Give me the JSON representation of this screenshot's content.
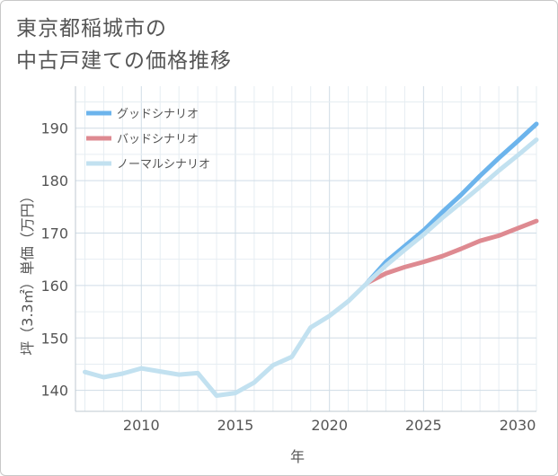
{
  "chart": {
    "title_line1": "東京都稲城市の",
    "title_line2": "中古戸建ての価格推移"
  },
  "chart_data": {
    "type": "line",
    "title": "東京都稲城市の中古戸建ての価格推移",
    "xlabel": "年",
    "ylabel": "坪（3.3㎡）単価（万円）",
    "xlim": [
      2006.5,
      2031
    ],
    "ylim": [
      136,
      198
    ],
    "x_ticks": [
      2010,
      2015,
      2020,
      2025,
      2030
    ],
    "y_ticks": [
      140,
      150,
      160,
      170,
      180,
      190
    ],
    "grid": true,
    "legend_position": "top-left",
    "series": [
      {
        "name": "グッドシナリオ",
        "color": "#6cb4ec",
        "x": [
          2022,
          2023,
          2024,
          2025,
          2026,
          2027,
          2028,
          2029,
          2030,
          2031
        ],
        "y": [
          160.5,
          164.5,
          167.5,
          170.5,
          174.0,
          177.3,
          180.9,
          184.3,
          187.5,
          190.8
        ]
      },
      {
        "name": "バッドシナリオ",
        "color": "#de8a91",
        "x": [
          2022,
          2023,
          2024,
          2025,
          2026,
          2027,
          2028,
          2029,
          2030,
          2031
        ],
        "y": [
          160.5,
          162.3,
          163.5,
          164.5,
          165.6,
          167.0,
          168.5,
          169.5,
          170.9,
          172.3
        ]
      },
      {
        "name": "ノーマルシナリオ",
        "color": "#c2e1f0",
        "x": [
          2007,
          2008,
          2009,
          2010,
          2011,
          2012,
          2013,
          2014,
          2015,
          2016,
          2017,
          2018,
          2019,
          2020,
          2021,
          2022,
          2023,
          2024,
          2025,
          2026,
          2027,
          2028,
          2029,
          2030,
          2031
        ],
        "y": [
          143.5,
          142.5,
          143.2,
          144.2,
          143.6,
          143.0,
          143.3,
          139.0,
          139.5,
          141.5,
          144.8,
          146.4,
          152.0,
          154.2,
          157.0,
          160.5,
          163.8,
          166.8,
          169.7,
          172.9,
          175.8,
          178.8,
          181.9,
          184.8,
          187.8
        ]
      }
    ]
  }
}
